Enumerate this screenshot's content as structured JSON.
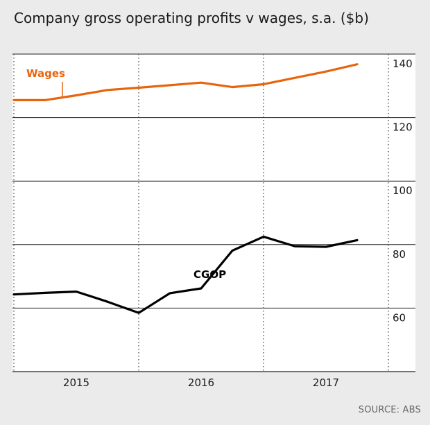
{
  "title": "Company gross operating profits v wages, s.a. ($b)",
  "source": "SOURCE: ABS",
  "colors": {
    "wages": "#e8640c",
    "cgop": "#000000",
    "grid": "#222222",
    "background": "#ebebeb",
    "plot": "#ffffff"
  },
  "chart_data": {
    "type": "line",
    "title": "Company gross operating profits v wages, s.a. ($b)",
    "xlabel": "",
    "ylabel": "",
    "ylim": [
      40,
      140
    ],
    "y_ticks": [
      60,
      80,
      100,
      120,
      140
    ],
    "year_labels": [
      "2015",
      "2016",
      "2017"
    ],
    "x": [
      "2014-Q4",
      "2015-Q1",
      "2015-Q2",
      "2015-Q3",
      "2015-Q4",
      "2016-Q1",
      "2016-Q2",
      "2016-Q3",
      "2016-Q4",
      "2017-Q1",
      "2017-Q2",
      "2017-Q3",
      "2017-Q4"
    ],
    "series": [
      {
        "name": "Wages",
        "values": [
          125.5,
          125.5,
          127.0,
          128.7,
          129.4,
          130.2,
          131.0,
          129.6,
          130.5,
          132.5,
          134.5,
          136.8,
          null
        ]
      },
      {
        "name": "CGOP",
        "values": [
          64.3,
          64.8,
          65.2,
          62.0,
          58.5,
          64.7,
          66.2,
          78.1,
          82.5,
          79.5,
          79.3,
          81.4,
          null
        ]
      }
    ]
  }
}
